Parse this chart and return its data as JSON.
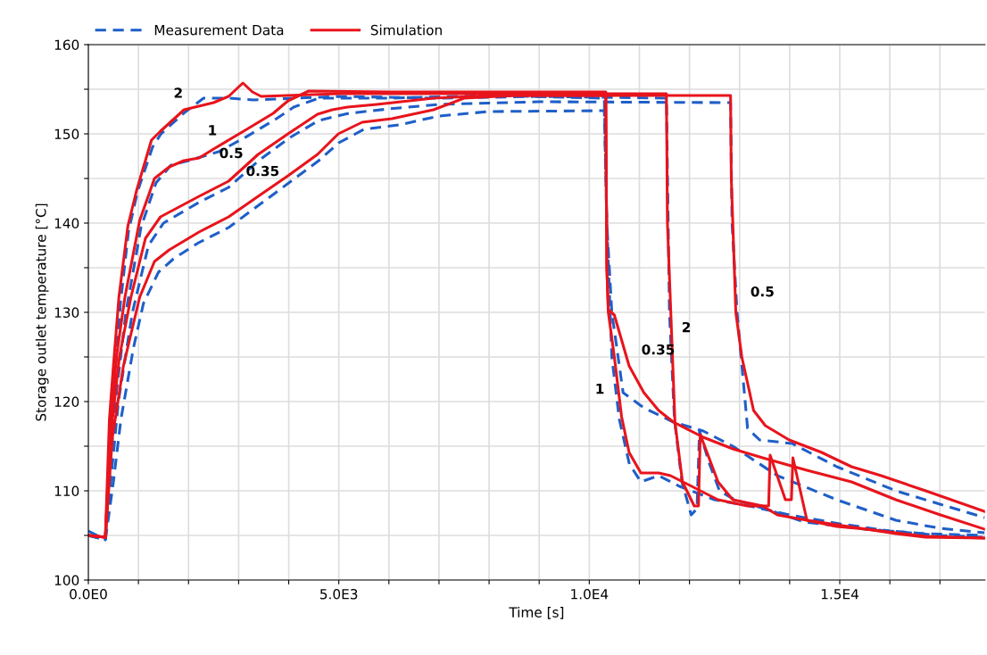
{
  "chart_data": {
    "type": "line",
    "xlabel": "Time [s]",
    "ylabel": "Storage outlet temperature [°C]",
    "xlim": [
      0,
      17900
    ],
    "ylim": [
      100,
      160
    ],
    "xticks": [
      {
        "value": 0,
        "label": "0.0E0"
      },
      {
        "value": 1000,
        "label": null
      },
      {
        "value": 2000,
        "label": null
      },
      {
        "value": 3000,
        "label": null
      },
      {
        "value": 4000,
        "label": null
      },
      {
        "value": 5000,
        "label": "5.0E3"
      },
      {
        "value": 6000,
        "label": null
      },
      {
        "value": 7000,
        "label": null
      },
      {
        "value": 8000,
        "label": null
      },
      {
        "value": 9000,
        "label": null
      },
      {
        "value": 10000,
        "label": "1.0E4"
      },
      {
        "value": 11000,
        "label": null
      },
      {
        "value": 12000,
        "label": null
      },
      {
        "value": 13000,
        "label": null
      },
      {
        "value": 14000,
        "label": null
      },
      {
        "value": 15000,
        "label": "1.5E4"
      },
      {
        "value": 16000,
        "label": null
      },
      {
        "value": 17000,
        "label": null
      }
    ],
    "yticks": [
      100,
      {
        "value": 105,
        "label": null
      },
      110,
      {
        "value": 115,
        "label": null
      },
      120,
      {
        "value": 125,
        "label": null
      },
      130,
      {
        "value": 135,
        "label": null
      },
      140,
      {
        "value": 145,
        "label": null
      },
      150,
      {
        "value": 155,
        "label": null
      },
      160
    ],
    "grid": true,
    "legend": "top",
    "series": [
      {
        "name": "Measurement Data",
        "color": "#1f5fc8",
        "line_style": "dashed",
        "x": [
          0,
          340,
          430,
          520,
          640,
          800,
          980,
          1280,
          1450,
          1900,
          2300,
          2800,
          3300,
          5000,
          7000,
          9000,
          11540,
          11600,
          11700,
          11850,
          12035,
          12150,
          12200,
          12400,
          12600,
          12900,
          13500,
          14300,
          15500,
          16700,
          17890
        ],
        "values": [
          105.5,
          104.5,
          115,
          122,
          131,
          139,
          143.5,
          148.5,
          150,
          152.3,
          154,
          154,
          153.8,
          154.2,
          154,
          154.2,
          154,
          130,
          118,
          111,
          107.3,
          108,
          116.7,
          113,
          110,
          109,
          108,
          106.5,
          105.7,
          105.2,
          105
        ]
      },
      {
        "color": "#1f5fc8",
        "line_style": "dashed",
        "x": [
          0,
          340,
          450,
          560,
          750,
          1050,
          1350,
          1650,
          2000,
          2300,
          2600,
          3100,
          3700,
          4100,
          4600,
          6000,
          8000,
          10300,
          10350,
          10450,
          10600,
          10800,
          11030,
          11385,
          11800,
          12500,
          13200,
          14000,
          15000,
          16000,
          17000,
          17890
        ],
        "values": [
          105,
          104.8,
          114,
          121,
          130,
          139.5,
          144.5,
          146.5,
          147,
          147.5,
          148,
          149.5,
          151.5,
          153,
          154,
          154,
          154.3,
          154,
          140,
          125,
          118,
          113,
          111,
          111.7,
          110.5,
          109,
          108.3,
          107.3,
          106.3,
          105.5,
          105,
          104.8
        ]
      },
      {
        "color": "#1f5fc8",
        "line_style": "dashed",
        "x": [
          0,
          340,
          480,
          600,
          880,
          1200,
          1500,
          2200,
          2800,
          3400,
          4000,
          4600,
          5200,
          6000,
          7000,
          9000,
          12820,
          12850,
          12950,
          13160,
          13400,
          14050,
          14940,
          16120,
          17000,
          17890
        ],
        "values": [
          105,
          104.5,
          113,
          120,
          130,
          137.5,
          140,
          142.3,
          144,
          147,
          149.5,
          151.5,
          152.3,
          152.8,
          153.3,
          153.6,
          153.5,
          140,
          130,
          117,
          115.7,
          115.3,
          112.7,
          110,
          108.5,
          107
        ]
      },
      {
        "color": "#1f5fc8",
        "line_style": "dashed",
        "x": [
          0,
          340,
          500,
          650,
          900,
          1100,
          1400,
          1700,
          2200,
          2800,
          3400,
          4000,
          4600,
          5000,
          5500,
          6200,
          7000,
          8000,
          10300,
          10350,
          10450,
          10675,
          11090,
          11680,
          12275,
          12865,
          13755,
          14940,
          16120,
          17000,
          17890
        ],
        "values": [
          105,
          104.5,
          111,
          118,
          126,
          131,
          134.5,
          136,
          137.8,
          139.5,
          142,
          144.5,
          147,
          149,
          150.5,
          151,
          152,
          152.5,
          152.6,
          140,
          130,
          121,
          119.3,
          117.7,
          116.7,
          115,
          111.7,
          109,
          106.7,
          105.8,
          105.3
        ]
      },
      {
        "name": "Simulation",
        "color": "#e8141c",
        "line_style": "solid",
        "x": [
          0,
          340,
          420,
          500,
          610,
          790,
          965,
          1260,
          1440,
          1910,
          2500,
          2800,
          3085,
          3275,
          3450,
          5000,
          8000,
          11540,
          11560,
          11710,
          11860,
          12095,
          12180,
          12215,
          12390,
          12570,
          12865,
          13460,
          13755,
          14345,
          15530,
          16715,
          17890
        ],
        "values": [
          105,
          104.8,
          118,
          124,
          131.7,
          139.7,
          143.7,
          149.3,
          150.3,
          152.7,
          153.5,
          154.2,
          155.7,
          154.7,
          154.2,
          154.5,
          154.5,
          154.5,
          140,
          117.7,
          111,
          108.3,
          108.3,
          116.3,
          113.7,
          111,
          109,
          108.3,
          107.3,
          106.7,
          105.7,
          104.9,
          104.7
        ]
      },
      {
        "color": "#e8141c",
        "line_style": "solid",
        "x": [
          0,
          340,
          440,
          560,
          730,
          1025,
          1320,
          1615,
          1910,
          2210,
          2500,
          3100,
          3690,
          3985,
          4400,
          6000,
          8000,
          10330,
          10350,
          10380,
          10500,
          10645,
          10795,
          11030,
          11385,
          11620,
          11975,
          12570,
          13160,
          13580,
          13610,
          13915,
          14035,
          14065,
          14345,
          14940,
          15530,
          16120,
          16715,
          17890
        ],
        "values": [
          105,
          104.8,
          117,
          125,
          131.7,
          140.3,
          145,
          146.3,
          147,
          147.3,
          148.3,
          150.3,
          152.3,
          153.7,
          154.8,
          154.7,
          154.7,
          154.7,
          135,
          130,
          125,
          118.3,
          114.3,
          112,
          112,
          111.7,
          110.7,
          109,
          108.3,
          108.3,
          114,
          109,
          109,
          113.7,
          106.7,
          106,
          105.7,
          105.2,
          104.8,
          104.7
        ]
      },
      {
        "color": "#e8141c",
        "line_style": "solid",
        "x": [
          0,
          340,
          460,
          620,
          850,
          1140,
          1440,
          2210,
          2800,
          3390,
          3985,
          4575,
          4870,
          5170,
          5760,
          6890,
          8000,
          12820,
          12835,
          12925,
          13045,
          13280,
          13515,
          13990,
          14640,
          15235,
          15825,
          16715,
          17890
        ],
        "values": [
          105,
          104.8,
          117,
          125,
          131.7,
          138.3,
          140.7,
          143,
          144.7,
          147.7,
          150,
          152.2,
          152.7,
          153,
          153.3,
          154,
          154.3,
          154.3,
          145,
          130,
          125,
          119,
          117.3,
          115.7,
          114.3,
          112.7,
          111.7,
          110,
          107.7
        ]
      },
      {
        "color": "#e8141c",
        "line_style": "solid",
        "x": [
          0,
          340,
          480,
          700,
          1025,
          1320,
          1615,
          2210,
          2800,
          3390,
          3985,
          4575,
          4990,
          5465,
          6060,
          6890,
          7500,
          8500,
          10330,
          10350,
          10380,
          10500,
          10795,
          11090,
          11385,
          11680,
          12275,
          12865,
          13460,
          14345,
          15235,
          16120,
          17010,
          17890
        ],
        "values": [
          105,
          104.8,
          116,
          124,
          131.7,
          135.7,
          137,
          139,
          140.7,
          143,
          145.3,
          147.7,
          150,
          151.3,
          151.7,
          152.7,
          154,
          154.3,
          154.3,
          135,
          130.3,
          129.7,
          124,
          121,
          119,
          117.7,
          116,
          114.7,
          113.7,
          112.3,
          111,
          109,
          107.3,
          105.7
        ]
      }
    ],
    "annotations": [
      {
        "text": "2",
        "x": 1795,
        "y": 152.1
      },
      {
        "text": "1",
        "x": 2475,
        "y": 148.2
      },
      {
        "text": "0.5",
        "x": 3100,
        "y": 146.2
      },
      {
        "text": "0.35",
        "x": 3480,
        "y": 143.35
      },
      {
        "text": "0.5",
        "x": 12912,
        "y": 132.2
      },
      {
        "text": "2",
        "x": 11640,
        "y": 128.2
      },
      {
        "text": "0.35",
        "x": 10707,
        "y": 125.7
      },
      {
        "text": "1",
        "x": 10580,
        "y": 121.3
      }
    ]
  }
}
